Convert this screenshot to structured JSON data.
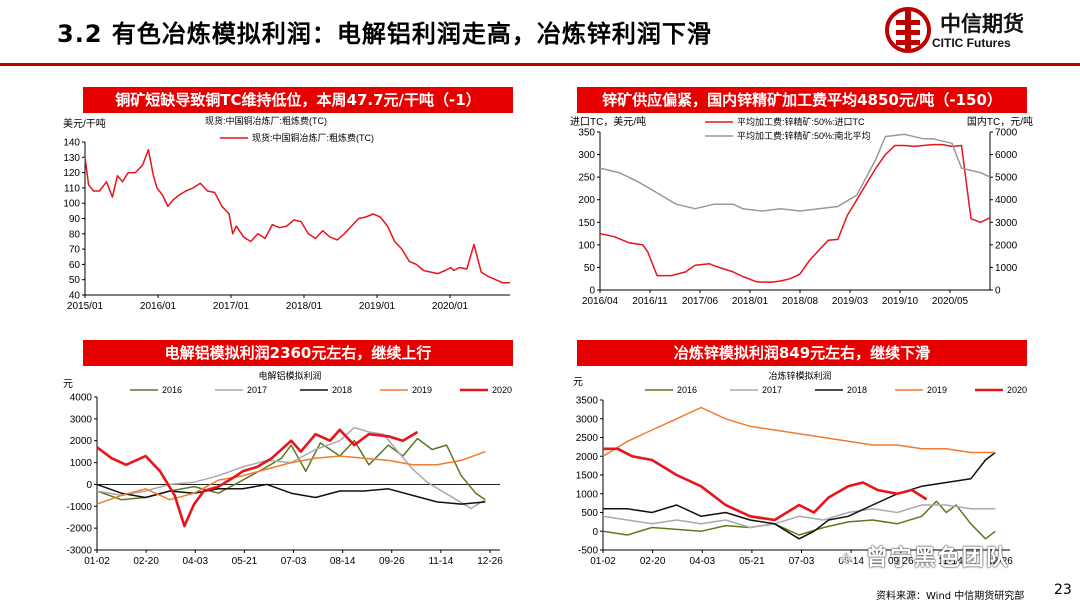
{
  "page": {
    "title": "3.2 有色冶炼模拟利润：电解铝利润走高，冶炼锌利润下滑",
    "logo_cn": "中信期货",
    "logo_en": "CITIC Futures",
    "source": "资料来源：Wind 中信期货研究部",
    "page_number": "23",
    "watermark": "曾宁黑色团队",
    "accent_color": "#e60000"
  },
  "chart_data": [
    {
      "id": "copper",
      "type": "line",
      "banner": "铜矿短缺导致铜TC维持低位，本周47.7元/干吨（-1）",
      "subtitle": "现货:中国铜冶炼厂:粗炼费(TC)",
      "ylabel": "美元/干吨",
      "ylim": [
        40,
        140
      ],
      "yticks": [
        40,
        50,
        60,
        70,
        80,
        90,
        100,
        110,
        120,
        130,
        140
      ],
      "xticks": [
        "2015/01",
        "2016/01",
        "2017/01",
        "2018/01",
        "2019/01",
        "2020/01"
      ],
      "xrange": [
        2015.0,
        2020.9
      ],
      "series": [
        {
          "name": "现货:中国铜冶炼厂:粗炼费(TC)",
          "color": "#e8141b",
          "x": [
            2015.0,
            2015.05,
            2015.12,
            2015.2,
            2015.3,
            2015.38,
            2015.45,
            2015.52,
            2015.6,
            2015.7,
            2015.8,
            2015.88,
            2015.95,
            2016.0,
            2016.08,
            2016.15,
            2016.22,
            2016.3,
            2016.4,
            2016.5,
            2016.6,
            2016.7,
            2016.8,
            2016.9,
            2017.0,
            2017.05,
            2017.1,
            2017.2,
            2017.3,
            2017.4,
            2017.5,
            2017.6,
            2017.7,
            2017.8,
            2017.9,
            2018.0,
            2018.1,
            2018.2,
            2018.3,
            2018.4,
            2018.5,
            2018.6,
            2018.7,
            2018.8,
            2018.9,
            2019.0,
            2019.1,
            2019.2,
            2019.3,
            2019.4,
            2019.5,
            2019.6,
            2019.7,
            2019.8,
            2019.9,
            2020.0,
            2020.08,
            2020.12,
            2020.2,
            2020.3,
            2020.4,
            2020.5,
            2020.6,
            2020.7,
            2020.8,
            2020.9
          ],
          "y": [
            130,
            112,
            108,
            108,
            114,
            104,
            118,
            114,
            120,
            120,
            125,
            135,
            118,
            110,
            105,
            98,
            102,
            105,
            108,
            110,
            113,
            108,
            107,
            98,
            93,
            80,
            85,
            78,
            75,
            80,
            77,
            86,
            84,
            85,
            89,
            88,
            80,
            77,
            82,
            78,
            76,
            80,
            85,
            90,
            91,
            93,
            91,
            85,
            75,
            70,
            62,
            60,
            56,
            55,
            54,
            56,
            58,
            56,
            58,
            57,
            73,
            55,
            52,
            50,
            48,
            48
          ]
        }
      ]
    },
    {
      "id": "zinc",
      "type": "line",
      "banner": "锌矿供应偏紧，国内锌精矿加工费平均4850元/吨（-150）",
      "ylabel_left": "进口TC，美元/吨",
      "ylabel_right": "国内TC，元/吨",
      "ylim_left": [
        0,
        350
      ],
      "ylim_right": [
        0,
        7000
      ],
      "yticks_left": [
        0,
        50,
        100,
        150,
        200,
        250,
        300,
        350
      ],
      "yticks_right": [
        0,
        1000,
        2000,
        3000,
        4000,
        5000,
        6000,
        7000
      ],
      "xticks": [
        "2016/04",
        "2016/11",
        "2017/06",
        "2018/01",
        "2018/08",
        "2019/03",
        "2019/10",
        "2020/05"
      ],
      "xrange": [
        0,
        8.2
      ],
      "series": [
        {
          "name": "平均加工费:锌精矿:50%:进口TC",
          "axis": "left",
          "color": "#e8141b",
          "x": [
            0,
            0.3,
            0.6,
            0.9,
            1.0,
            1.2,
            1.5,
            1.8,
            2.0,
            2.3,
            2.5,
            2.8,
            3.0,
            3.3,
            3.6,
            3.8,
            4.0,
            4.2,
            4.4,
            4.6,
            4.8,
            5.0,
            5.2,
            5.4,
            5.6,
            5.8,
            6.0,
            6.2,
            6.4,
            6.6,
            6.8,
            7.0,
            7.2,
            7.4,
            7.6,
            7.8,
            8.0,
            8.2
          ],
          "y": [
            125,
            118,
            105,
            100,
            85,
            32,
            32,
            40,
            55,
            58,
            50,
            40,
            30,
            18,
            17,
            20,
            25,
            35,
            65,
            88,
            110,
            112,
            165,
            200,
            235,
            270,
            300,
            320,
            320,
            318,
            320,
            322,
            322,
            318,
            320,
            158,
            150,
            160
          ]
        },
        {
          "name": "平均加工费:锌精矿:50%:南北平均",
          "axis": "right",
          "color": "#999999",
          "x": [
            0,
            0.4,
            0.8,
            1.2,
            1.6,
            2.0,
            2.4,
            2.8,
            3.0,
            3.4,
            3.8,
            4.2,
            4.6,
            5.0,
            5.4,
            5.8,
            6.0,
            6.4,
            6.8,
            7.0,
            7.4,
            7.6,
            7.8,
            8.0,
            8.2
          ],
          "y": [
            5400,
            5200,
            4800,
            4300,
            3800,
            3600,
            3800,
            3800,
            3600,
            3500,
            3600,
            3500,
            3600,
            3700,
            4200,
            5800,
            6800,
            6900,
            6700,
            6700,
            6500,
            5400,
            5300,
            5200,
            5000
          ]
        }
      ]
    },
    {
      "id": "aluminium",
      "type": "line",
      "banner": "电解铝模拟利润2360元左右，继续上行",
      "subtitle": "电解铝模拟利润",
      "ylabel": "元",
      "ylim": [
        -3000,
        4000
      ],
      "yticks": [
        -3000,
        -2000,
        -1000,
        0,
        1000,
        2000,
        3000,
        4000
      ],
      "xticks": [
        "01-02",
        "02-20",
        "04-03",
        "05-21",
        "07-03",
        "08-14",
        "09-26",
        "11-14",
        "12-26"
      ],
      "xrange": [
        0,
        8.3
      ],
      "series": [
        {
          "name": "2016",
          "color": "#5a7a1f",
          "x": [
            0,
            0.5,
            1.0,
            1.5,
            2.0,
            2.5,
            3.0,
            3.5,
            3.8,
            4.0,
            4.3,
            4.6,
            5.0,
            5.3,
            5.6,
            6.0,
            6.3,
            6.6,
            6.9,
            7.2,
            7.5,
            7.8,
            8.0
          ],
          "y": [
            -300,
            -700,
            -600,
            -300,
            -100,
            -400,
            200,
            800,
            1200,
            1800,
            600,
            1900,
            1300,
            2000,
            900,
            1800,
            1300,
            2100,
            1600,
            1800,
            400,
            -400,
            -700
          ]
        },
        {
          "name": "2017",
          "color": "#aaaaaa",
          "x": [
            0,
            0.5,
            1.0,
            1.5,
            2.0,
            2.5,
            3.0,
            3.5,
            4.0,
            4.5,
            5.0,
            5.3,
            5.6,
            5.9,
            6.2,
            6.5,
            6.8,
            7.1,
            7.4,
            7.7,
            8.0
          ],
          "y": [
            -300,
            -500,
            -300,
            0,
            100,
            400,
            800,
            1100,
            1000,
            1600,
            2000,
            2600,
            2400,
            2300,
            1500,
            700,
            100,
            -300,
            -700,
            -1100,
            -700
          ]
        },
        {
          "name": "2018",
          "color": "#111111",
          "x": [
            0,
            0.5,
            1.0,
            1.5,
            2.0,
            2.5,
            3.0,
            3.5,
            4.0,
            4.5,
            5.0,
            5.5,
            6.0,
            6.5,
            7.0,
            7.5,
            8.0
          ],
          "y": [
            0,
            -400,
            -600,
            -300,
            -400,
            -200,
            -200,
            0,
            -400,
            -600,
            -300,
            -300,
            -200,
            -500,
            -800,
            -900,
            -800
          ]
        },
        {
          "name": "2019",
          "color": "#f07c30",
          "x": [
            0,
            0.5,
            1.0,
            1.5,
            2.0,
            2.5,
            3.0,
            3.5,
            4.0,
            4.5,
            5.0,
            5.5,
            6.0,
            6.5,
            7.0,
            7.5,
            8.0
          ],
          "y": [
            -900,
            -500,
            -200,
            -700,
            -400,
            200,
            400,
            700,
            1000,
            1200,
            1300,
            1200,
            1100,
            900,
            900,
            1100,
            1500
          ]
        },
        {
          "name": "2020",
          "color": "#e8141b",
          "x": [
            0,
            0.3,
            0.6,
            1.0,
            1.3,
            1.6,
            1.8,
            2.0,
            2.2,
            2.5,
            2.8,
            3.0,
            3.3,
            3.6,
            4.0,
            4.2,
            4.5,
            4.8,
            5.0,
            5.3,
            5.6,
            6.0,
            6.3,
            6.6
          ],
          "y": [
            1700,
            1200,
            900,
            1300,
            600,
            -500,
            -1900,
            -900,
            -300,
            -100,
            300,
            600,
            800,
            1200,
            2000,
            1500,
            2300,
            2000,
            2500,
            1800,
            2300,
            2200,
            2000,
            2400
          ]
        }
      ]
    },
    {
      "id": "zinc_smelt",
      "type": "line",
      "banner": "冶炼锌模拟利润849元左右，继续下滑",
      "subtitle": "冶炼锌模拟利润",
      "ylabel": "元",
      "ylim": [
        -500,
        3500
      ],
      "yticks": [
        -500,
        0,
        500,
        1000,
        1500,
        2000,
        2500,
        3000,
        3500
      ],
      "xticks": [
        "01-02",
        "02-20",
        "04-03",
        "05-21",
        "07-03",
        "08-14",
        "09-26",
        "11-14",
        "12-26"
      ],
      "xrange": [
        0,
        8.3
      ],
      "series": [
        {
          "name": "2016",
          "color": "#5a7a1f",
          "x": [
            0,
            0.5,
            1.0,
            1.5,
            2.0,
            2.5,
            3.0,
            3.5,
            4.0,
            4.5,
            5.0,
            5.5,
            6.0,
            6.5,
            6.8,
            7.0,
            7.2,
            7.5,
            7.8,
            8.0
          ],
          "y": [
            0,
            -100,
            100,
            50,
            0,
            150,
            100,
            200,
            -100,
            100,
            250,
            300,
            200,
            400,
            800,
            500,
            700,
            200,
            -200,
            0
          ]
        },
        {
          "name": "2017",
          "color": "#aaaaaa",
          "x": [
            0,
            0.5,
            1.0,
            1.5,
            2.0,
            2.5,
            3.0,
            3.5,
            4.0,
            4.5,
            5.0,
            5.5,
            6.0,
            6.5,
            7.0,
            7.5,
            8.0
          ],
          "y": [
            400,
            300,
            200,
            300,
            200,
            300,
            100,
            200,
            400,
            300,
            500,
            600,
            500,
            700,
            700,
            600,
            600
          ]
        },
        {
          "name": "2018",
          "color": "#111111",
          "x": [
            0,
            0.5,
            1.0,
            1.5,
            2.0,
            2.5,
            3.0,
            3.5,
            4.0,
            4.3,
            4.6,
            5.0,
            5.5,
            6.0,
            6.5,
            7.0,
            7.5,
            7.8,
            8.0
          ],
          "y": [
            600,
            600,
            500,
            700,
            400,
            500,
            300,
            200,
            -200,
            0,
            300,
            400,
            700,
            1000,
            1200,
            1300,
            1400,
            1900,
            2100
          ]
        },
        {
          "name": "2019",
          "color": "#f07c30",
          "x": [
            0,
            0.5,
            1.0,
            1.5,
            2.0,
            2.5,
            3.0,
            3.5,
            4.0,
            4.5,
            5.0,
            5.5,
            6.0,
            6.5,
            7.0,
            7.5,
            8.0
          ],
          "y": [
            2000,
            2400,
            2700,
            3000,
            3300,
            3000,
            2800,
            2700,
            2600,
            2500,
            2400,
            2300,
            2300,
            2200,
            2200,
            2100,
            2100
          ]
        },
        {
          "name": "2020",
          "color": "#e8141b",
          "x": [
            0,
            0.3,
            0.6,
            1.0,
            1.5,
            2.0,
            2.5,
            3.0,
            3.5,
            4.0,
            4.3,
            4.6,
            5.0,
            5.3,
            5.6,
            6.0,
            6.3,
            6.6
          ],
          "y": [
            2200,
            2200,
            2000,
            1900,
            1500,
            1200,
            700,
            400,
            300,
            700,
            500,
            900,
            1200,
            1300,
            1100,
            1000,
            1100,
            850
          ]
        }
      ]
    }
  ]
}
